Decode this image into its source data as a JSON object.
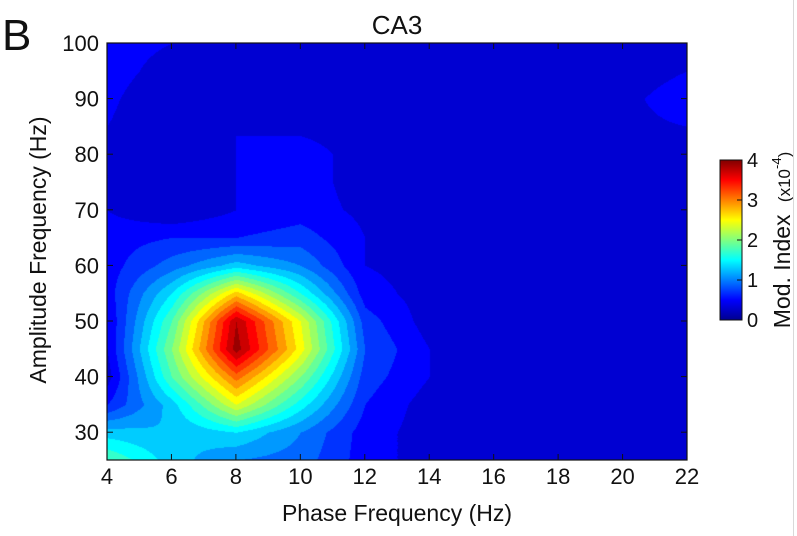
{
  "panel_letter": "B",
  "chart_data": {
    "type": "heatmap",
    "title": "CA3",
    "xlabel": "Phase Frequency (Hz)",
    "ylabel": "Amplitude Frequency (Hz)",
    "x_ticks": [
      "4",
      "6",
      "8",
      "10",
      "12",
      "14",
      "16",
      "18",
      "20",
      "22"
    ],
    "y_ticks": [
      "30",
      "40",
      "50",
      "60",
      "70",
      "80",
      "90",
      "100"
    ],
    "xlim": [
      4,
      22
    ],
    "ylim": [
      25,
      100
    ],
    "colorbar": {
      "label": "Mod. Index",
      "scale_base": "(x10",
      "scale_exp": "-4",
      "scale_close": ")",
      "ticks": [
        "0",
        "1",
        "2",
        "3",
        "4"
      ],
      "range": [
        0,
        4
      ]
    },
    "colormap": [
      "#00008f",
      "#0000ff",
      "#0080ff",
      "#00ffff",
      "#80ff80",
      "#ffff00",
      "#ff8000",
      "#ff0000",
      "#800000"
    ],
    "x": [
      4,
      6,
      8,
      10,
      12,
      14,
      16,
      18,
      20,
      22
    ],
    "y": [
      25,
      30,
      35,
      40,
      45,
      50,
      55,
      60,
      65,
      70,
      75,
      80,
      85,
      90,
      95,
      100
    ],
    "z": [
      [
        1.8,
        1.3,
        1.0,
        0.9,
        0.5,
        0.3,
        0.3,
        0.3,
        0.3,
        0.3
      ],
      [
        1.3,
        1.2,
        1.4,
        1.0,
        0.5,
        0.3,
        0.3,
        0.3,
        0.3,
        0.3
      ],
      [
        0.6,
        1.3,
        2.4,
        1.5,
        0.6,
        0.3,
        0.3,
        0.3,
        0.3,
        0.3
      ],
      [
        0.3,
        1.8,
        3.1,
        2.0,
        0.7,
        0.4,
        0.3,
        0.3,
        0.3,
        0.3
      ],
      [
        0.4,
        2.0,
        3.9,
        2.5,
        0.8,
        0.4,
        0.3,
        0.3,
        0.3,
        0.3
      ],
      [
        0.4,
        1.8,
        3.8,
        2.4,
        0.7,
        0.3,
        0.3,
        0.3,
        0.3,
        0.3
      ],
      [
        0.5,
        1.4,
        2.7,
        1.6,
        0.5,
        0.3,
        0.3,
        0.3,
        0.3,
        0.3
      ],
      [
        0.5,
        0.9,
        1.3,
        1.0,
        0.4,
        0.3,
        0.3,
        0.3,
        0.3,
        0.3
      ],
      [
        0.5,
        0.6,
        0.6,
        0.7,
        0.4,
        0.3,
        0.3,
        0.3,
        0.3,
        0.3
      ],
      [
        0.4,
        0.2,
        0.4,
        0.5,
        0.35,
        0.3,
        0.3,
        0.3,
        0.3,
        0.3
      ],
      [
        0.4,
        0.2,
        0.4,
        0.5,
        0.3,
        0.3,
        0.3,
        0.3,
        0.3,
        0.3
      ],
      [
        0.4,
        0.2,
        0.4,
        0.5,
        0.3,
        0.3,
        0.3,
        0.3,
        0.4,
        0.4
      ],
      [
        0.4,
        0.2,
        0.4,
        0.35,
        0.3,
        0.3,
        0.3,
        0.3,
        0.35,
        0.4
      ],
      [
        0.45,
        0.2,
        0.4,
        0.3,
        0.3,
        0.3,
        0.3,
        0.3,
        0.35,
        0.5
      ],
      [
        0.5,
        0.3,
        0.4,
        0.3,
        0.3,
        0.3,
        0.3,
        0.3,
        0.3,
        0.4
      ],
      [
        0.5,
        0.4,
        0.4,
        0.3,
        0.3,
        0.3,
        0.3,
        0.3,
        0.3,
        0.3
      ]
    ]
  }
}
